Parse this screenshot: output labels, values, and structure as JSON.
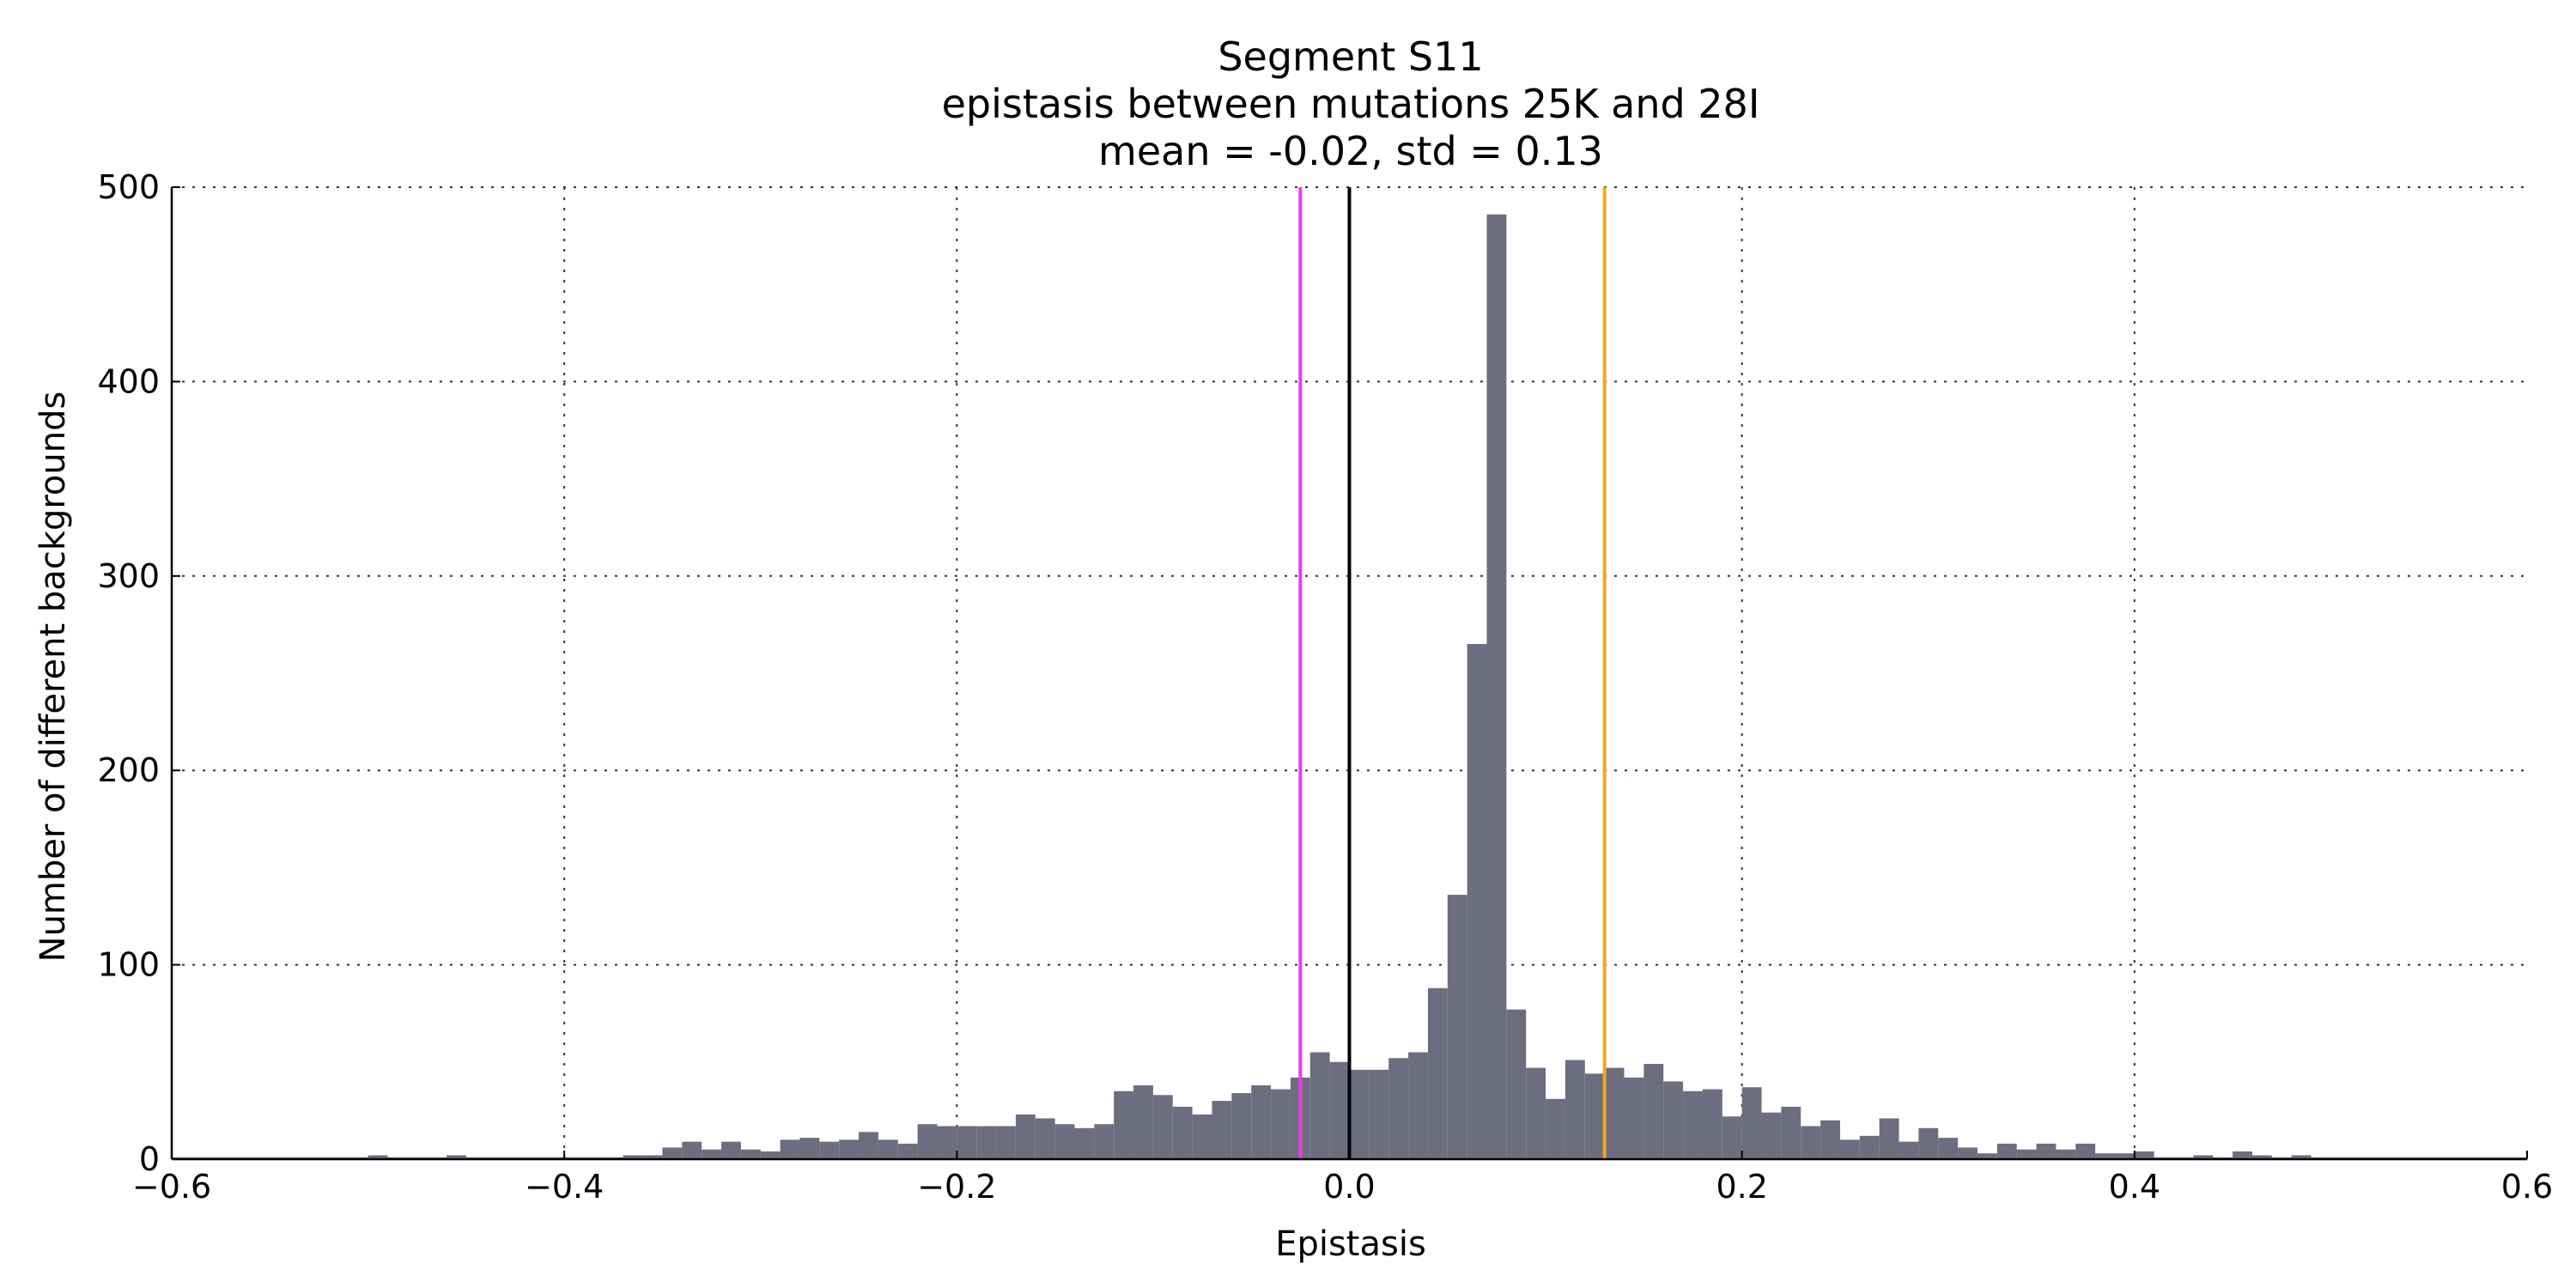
{
  "chart_data": {
    "type": "bar",
    "title_lines": [
      "Segment S11",
      "epistasis between mutations 25K and 28I",
      "mean = -0.02, std = 0.13"
    ],
    "xlabel": "Epistasis",
    "ylabel": "Number of different backgrounds",
    "xlim": [
      -0.6,
      0.6
    ],
    "ylim": [
      0,
      500
    ],
    "xticks": [
      -0.6,
      -0.4,
      -0.2,
      0.0,
      0.2,
      0.4,
      0.6
    ],
    "xtick_labels": [
      "−0.6",
      "−0.4",
      "−0.2",
      "0.0",
      "0.2",
      "0.4",
      "0.6"
    ],
    "yticks": [
      0,
      100,
      200,
      300,
      400,
      500
    ],
    "ytick_labels": [
      "0",
      "100",
      "200",
      "300",
      "400",
      "500"
    ],
    "grid": true,
    "bin_start": -0.6,
    "bin_width": 0.01,
    "bar_color": "#6d6d80",
    "values": [
      1,
      1,
      1,
      1,
      1,
      1,
      1,
      1,
      1,
      1,
      2,
      1,
      1,
      1,
      2,
      1,
      1,
      1,
      1,
      1,
      1,
      1,
      1,
      2,
      2,
      6,
      9,
      5,
      9,
      5,
      4,
      10,
      11,
      9,
      10,
      14,
      10,
      8,
      18,
      17,
      17,
      17,
      17,
      23,
      21,
      18,
      16,
      18,
      35,
      38,
      33,
      27,
      23,
      30,
      34,
      38,
      36,
      42,
      55,
      50,
      46,
      46,
      52,
      55,
      88,
      136,
      265,
      486,
      77,
      47,
      31,
      51,
      44,
      47,
      42,
      49,
      40,
      35,
      36,
      22,
      37,
      24,
      27,
      17,
      20,
      10,
      12,
      21,
      9,
      16,
      11,
      6,
      3,
      8,
      5,
      8,
      5,
      8,
      3,
      3,
      4,
      1,
      1,
      2,
      1,
      4,
      2,
      1,
      2,
      1,
      1,
      1,
      1,
      1,
      1,
      1,
      1,
      1,
      1,
      1
    ],
    "vlines": [
      {
        "x": -0.025,
        "color": "#e83ce8"
      },
      {
        "x": 0.0,
        "color": "#000000"
      },
      {
        "x": 0.13,
        "color": "#f5a623"
      }
    ]
  }
}
